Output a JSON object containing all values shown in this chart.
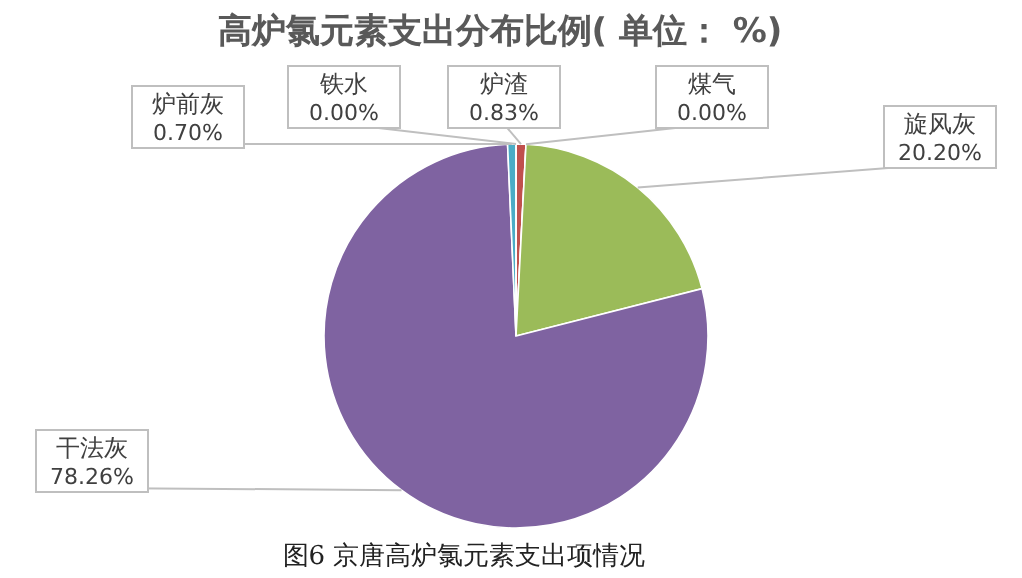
{
  "chart_data": {
    "type": "pie",
    "title": "高炉氯元素支出分布比例( 单位： %)",
    "categories": [
      "炉渣",
      "煤气",
      "旋风灰",
      "干法灰",
      "炉前灰",
      "铁水"
    ],
    "values": [
      0.83,
      0,
      20.2,
      78.26,
      0.7,
      0
    ],
    "value_labels": [
      "0.83%",
      "0.00%",
      "20.20%",
      "78.26%",
      "0.70%",
      "0.00%"
    ],
    "colors": [
      "#c0504d",
      "#f79646",
      "#9bbb59",
      "#7f63a1",
      "#4bacc6",
      "#4f81bd"
    ],
    "annotations": [
      "图6  京唐高炉氯元素支出项情况"
    ]
  }
}
